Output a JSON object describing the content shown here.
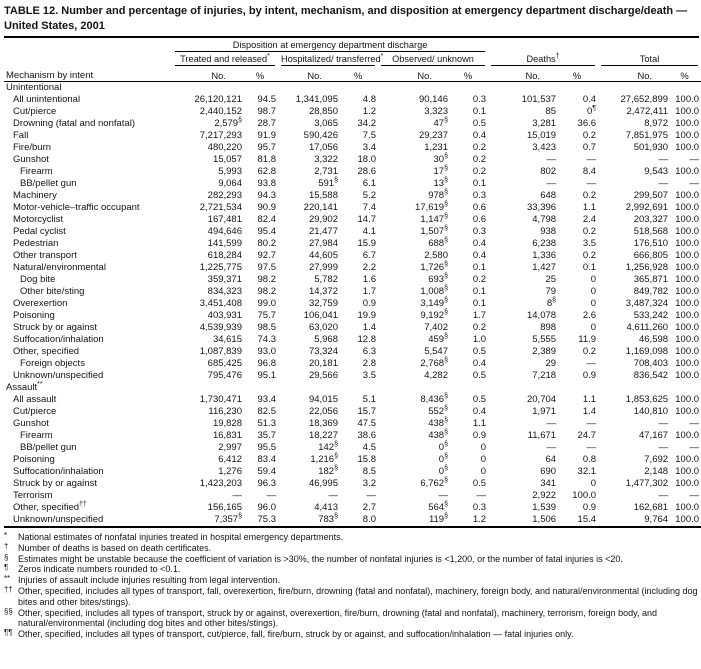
{
  "title": "TABLE 12. Number and percentage of injuries, by intent, mechanism, and disposition at emergency department discharge/death — United States, 2001",
  "table": {
    "spanner": "Disposition at emergency department discharge",
    "row_header": "Mechanism by intent",
    "subheaders": [
      "No.",
      "%"
    ],
    "col_groups": [
      {
        "label": "Treated and released*"
      },
      {
        "label": "Hospitalized/ transferred*"
      },
      {
        "label": "Observed/ unknown"
      },
      {
        "label": "Deaths†"
      },
      {
        "label": "Total"
      }
    ],
    "sections": [
      {
        "label": "Unintentional",
        "rows": [
          {
            "label": "All unintentional",
            "indent": 1,
            "values": [
              "26,120,121",
              "94.5",
              "1,341,095",
              "4.8",
              "90,146",
              "0.3",
              "101,537",
              "0.4",
              "27,652,899",
              "100.0"
            ]
          },
          {
            "label": "Cut/pierce",
            "indent": 1,
            "values": [
              "2,440,152",
              "98.7",
              "28,850",
              "1.2",
              "3,323",
              "0.1",
              "85",
              "0¶",
              "2,472,411",
              "100.0"
            ]
          },
          {
            "label": "Drowning (fatal and nonfatal)",
            "indent": 1,
            "values": [
              "2,579§",
              "28.7",
              "3,065",
              "34.2",
              "47§",
              "0.5",
              "3,281",
              "36.6",
              "8,972",
              "100.0"
            ]
          },
          {
            "label": "Fall",
            "indent": 1,
            "values": [
              "7,217,293",
              "91.9",
              "590,426",
              "7.5",
              "29,237",
              "0.4",
              "15,019",
              "0.2",
              "7,851,975",
              "100.0"
            ]
          },
          {
            "label": "Fire/burn",
            "indent": 1,
            "values": [
              "480,220",
              "95.7",
              "17,056",
              "3.4",
              "1,231",
              "0.2",
              "3,423",
              "0.7",
              "501,930",
              "100.0"
            ]
          },
          {
            "label": "Gunshot",
            "indent": 1,
            "values": [
              "15,057",
              "81.8",
              "3,322",
              "18.0",
              "30§",
              "0.2",
              "—",
              "—",
              "—",
              "—"
            ]
          },
          {
            "label": "Firearm",
            "indent": 2,
            "values": [
              "5,993",
              "62.8",
              "2,731",
              "28.6",
              "17§",
              "0.2",
              "802",
              "8.4",
              "9,543",
              "100.0"
            ]
          },
          {
            "label": "BB/pellet gun",
            "indent": 2,
            "values": [
              "9,064",
              "93.8",
              "591§",
              "6.1",
              "13§",
              "0.1",
              "—",
              "—",
              "—",
              "—"
            ]
          },
          {
            "label": "Machinery",
            "indent": 1,
            "values": [
              "282,293",
              "94.3",
              "15,588",
              "5.2",
              "978§",
              "0.3",
              "648",
              "0.2",
              "299,507",
              "100.0"
            ]
          },
          {
            "label": "Motor-vehicle–traffic occupant",
            "indent": 1,
            "values": [
              "2,721,534",
              "90.9",
              "220,141",
              "7.4",
              "17,619§",
              "0.6",
              "33,396",
              "1.1",
              "2,992,691",
              "100.0"
            ]
          },
          {
            "label": "Motorcyclist",
            "indent": 1,
            "values": [
              "167,481",
              "82.4",
              "29,902",
              "14.7",
              "1,147§",
              "0.6",
              "4,798",
              "2.4",
              "203,327",
              "100.0"
            ]
          },
          {
            "label": "Pedal cyclist",
            "indent": 1,
            "values": [
              "494,646",
              "95.4",
              "21,477",
              "4.1",
              "1,507§",
              "0.3",
              "938",
              "0.2",
              "518,568",
              "100.0"
            ]
          },
          {
            "label": "Pedestrian",
            "indent": 1,
            "values": [
              "141,599",
              "80.2",
              "27,984",
              "15.9",
              "688§",
              "0.4",
              "6,238",
              "3.5",
              "176,510",
              "100.0"
            ]
          },
          {
            "label": "Other transport",
            "indent": 1,
            "values": [
              "618,284",
              "92.7",
              "44,605",
              "6.7",
              "2,580",
              "0.4",
              "1,336",
              "0.2",
              "666,805",
              "100.0"
            ]
          },
          {
            "label": "Natural/environmental",
            "indent": 1,
            "values": [
              "1,225,775",
              "97.5",
              "27,999",
              "2.2",
              "1,726§",
              "0.1",
              "1,427",
              "0.1",
              "1,256,928",
              "100.0"
            ]
          },
          {
            "label": "Dog bite",
            "indent": 2,
            "values": [
              "359,371",
              "98.2",
              "5,782",
              "1.6",
              "693§",
              "0.2",
              "25",
              "0",
              "365,871",
              "100.0"
            ]
          },
          {
            "label": "Other bite/sting",
            "indent": 2,
            "values": [
              "834,323",
              "98.2",
              "14,372",
              "1.7",
              "1,008§",
              "0.1",
              "79",
              "0",
              "849,782",
              "100.0"
            ]
          },
          {
            "label": "Overexertion",
            "indent": 1,
            "values": [
              "3,451,408",
              "99.0",
              "32,759",
              "0.9",
              "3,149§",
              "0.1",
              "8§",
              "0",
              "3,487,324",
              "100.0"
            ]
          },
          {
            "label": "Poisoning",
            "indent": 1,
            "values": [
              "403,931",
              "75.7",
              "106,041",
              "19.9",
              "9,192§",
              "1.7",
              "14,078",
              "2.6",
              "533,242",
              "100.0"
            ]
          },
          {
            "label": "Struck by or against",
            "indent": 1,
            "values": [
              "4,539,939",
              "98.5",
              "63,020",
              "1.4",
              "7,402",
              "0.2",
              "898",
              "0",
              "4,611,260",
              "100.0"
            ]
          },
          {
            "label": "Suffocation/inhalation",
            "indent": 1,
            "values": [
              "34,615",
              "74.3",
              "5,968",
              "12.8",
              "459§",
              "1.0",
              "5,555",
              "11.9",
              "46,598",
              "100.0"
            ]
          },
          {
            "label": "Other, specified",
            "indent": 1,
            "values": [
              "1,087,839",
              "93.0",
              "73,324",
              "6.3",
              "5,547",
              "0.5",
              "2,389",
              "0.2",
              "1,169,098",
              "100.0"
            ]
          },
          {
            "label": "Foreign objects",
            "indent": 2,
            "values": [
              "685,425",
              "96.8",
              "20,181",
              "2.8",
              "2,768§",
              "0.4",
              "29",
              "—",
              "708,403",
              "100.0"
            ]
          },
          {
            "label": "Unknown/unspecified",
            "indent": 1,
            "values": [
              "795,476",
              "95.1",
              "29,566",
              "3.5",
              "4,282",
              "0.5",
              "7,218",
              "0.9",
              "836,542",
              "100.0"
            ]
          }
        ]
      },
      {
        "label": "Assault**",
        "rows": [
          {
            "label": "All assault",
            "indent": 1,
            "values": [
              "1,730,471",
              "93.4",
              "94,015",
              "5.1",
              "8,436§",
              "0.5",
              "20,704",
              "1.1",
              "1,853,625",
              "100.0"
            ]
          },
          {
            "label": "Cut/pierce",
            "indent": 1,
            "values": [
              "116,230",
              "82.5",
              "22,056",
              "15.7",
              "552§",
              "0.4",
              "1,971",
              "1.4",
              "140,810",
              "100.0"
            ]
          },
          {
            "label": "Gunshot",
            "indent": 1,
            "values": [
              "19,828",
              "51.3",
              "18,369",
              "47.5",
              "438§",
              "1.1",
              "—",
              "—",
              "—",
              "—"
            ]
          },
          {
            "label": "Firearm",
            "indent": 2,
            "values": [
              "16,831",
              "35.7",
              "18,227",
              "38.6",
              "438§",
              "0.9",
              "11,671",
              "24.7",
              "47,167",
              "100.0"
            ]
          },
          {
            "label": "BB/pellet gun",
            "indent": 2,
            "values": [
              "2,997",
              "95.5",
              "142§",
              "4.5",
              "0§",
              "0",
              "—",
              "—",
              "—",
              "—"
            ]
          },
          {
            "label": "Poisoning",
            "indent": 1,
            "values": [
              "6,412",
              "83.4",
              "1,216§",
              "15.8",
              "0§",
              "0",
              "64",
              "0.8",
              "7,692",
              "100.0"
            ]
          },
          {
            "label": "Suffocation/inhalation",
            "indent": 1,
            "values": [
              "1,276",
              "59.4",
              "182§",
              "8.5",
              "0§",
              "0",
              "690",
              "32.1",
              "2,148",
              "100.0"
            ]
          },
          {
            "label": "Struck by or against",
            "indent": 1,
            "values": [
              "1,423,203",
              "96.3",
              "46,995",
              "3.2",
              "6,762§",
              "0.5",
              "341",
              "0",
              "1,477,302",
              "100.0"
            ]
          },
          {
            "label": "Terrorism",
            "indent": 1,
            "values": [
              "—",
              "—",
              "—",
              "—",
              "—",
              "—",
              "2,922",
              "100.0",
              "—",
              "—"
            ]
          },
          {
            "label": "Other, specified††",
            "indent": 1,
            "values": [
              "156,165",
              "96.0",
              "4,413",
              "2.7",
              "564§",
              "0.3",
              "1,539",
              "0.9",
              "162,681",
              "100.0"
            ]
          },
          {
            "label": "Unknown/unspecified",
            "indent": 1,
            "values": [
              "7,357§",
              "75.3",
              "783§",
              "8.0",
              "119§",
              "1.2",
              "1,506",
              "15.4",
              "9,764",
              "100.0"
            ]
          }
        ]
      }
    ]
  },
  "footnotes": [
    {
      "marker": "*",
      "text": "National estimates of nonfatal injuries treated in hospital emergency departments."
    },
    {
      "marker": "†",
      "text": "Number of deaths is based on death certificates."
    },
    {
      "marker": "§",
      "text": "Estimates might be unstable because the coefficient of variation is >30%, the number of nonfatal injuries is <1,200, or the number of fatal injuries is <20."
    },
    {
      "marker": "¶",
      "text": "Zeros indicate numbers rounded to <0.1."
    },
    {
      "marker": "**",
      "text": "Injuries of assault include injuries resulting from legal intervention."
    },
    {
      "marker": "††",
      "text": "Other, specified, includes all types of transport, fall, overexertion, fire/burn, drowning (fatal and nonfatal), machinery, foreign body, and natural/environmental (including dog bites and other bites/stings)."
    },
    {
      "marker": "§§",
      "text": "Other, specified, includes all types of transport, struck by or against, overexertion, fire/burn, drowning (fatal and nonfatal), machinery, terrorism, foreign body, and natural/environmental (including dog bites and other bites/stings)."
    },
    {
      "marker": "¶¶",
      "text": "Other, specified, includes all types of transport, cut/pierce, fall, fire/burn, struck by or against, and suffocation/inhalation — fatal injuries only."
    }
  ]
}
